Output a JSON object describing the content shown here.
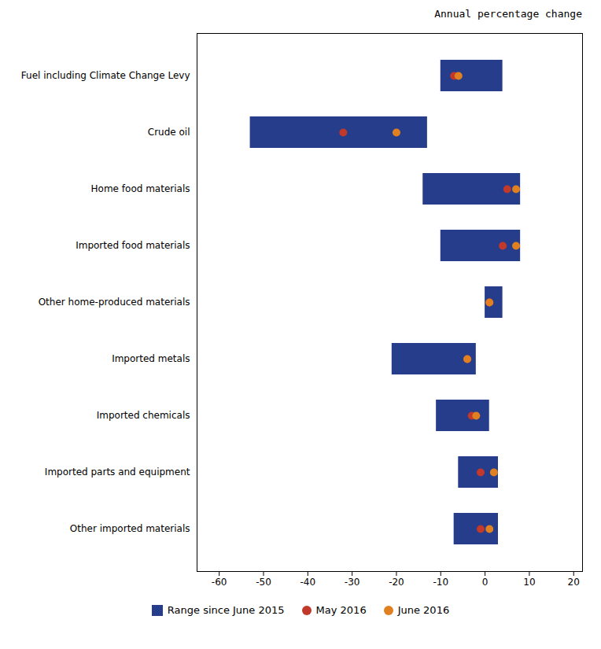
{
  "chart_data": {
    "type": "range",
    "orientation": "horizontal",
    "title": "Annual percentage change",
    "categories": [
      "Fuel including Climate Change Levy",
      "Crude oil",
      "Home food materials",
      "Imported food materials",
      "Other home-produced materials",
      "Imported metals",
      "Imported chemicals",
      "Imported parts and equipment",
      "Other imported materials"
    ],
    "series": [
      {
        "name": "Range since June 2015",
        "type": "bar",
        "color": "#253d8a",
        "low": [
          -10,
          -53,
          -14,
          -10,
          0,
          -21,
          -11,
          -6,
          -7
        ],
        "high": [
          4,
          -13,
          8,
          8,
          4,
          -2,
          1,
          3,
          3
        ]
      },
      {
        "name": "May 2016",
        "type": "scatter",
        "marker": "circle",
        "color": "#c0392b",
        "values": [
          -7,
          -32,
          5,
          4,
          1,
          -4,
          -3,
          -1,
          -1
        ]
      },
      {
        "name": "June 2016",
        "type": "scatter",
        "marker": "circle",
        "color": "#e08020",
        "values": [
          -6,
          -20,
          7,
          7,
          1,
          -4,
          -2,
          2,
          1
        ]
      }
    ],
    "xlim": [
      -65,
      22
    ],
    "xticks": [
      -60,
      -50,
      -40,
      -30,
      -20,
      -10,
      0,
      10,
      20
    ],
    "grid": false,
    "legend": "bottom"
  }
}
